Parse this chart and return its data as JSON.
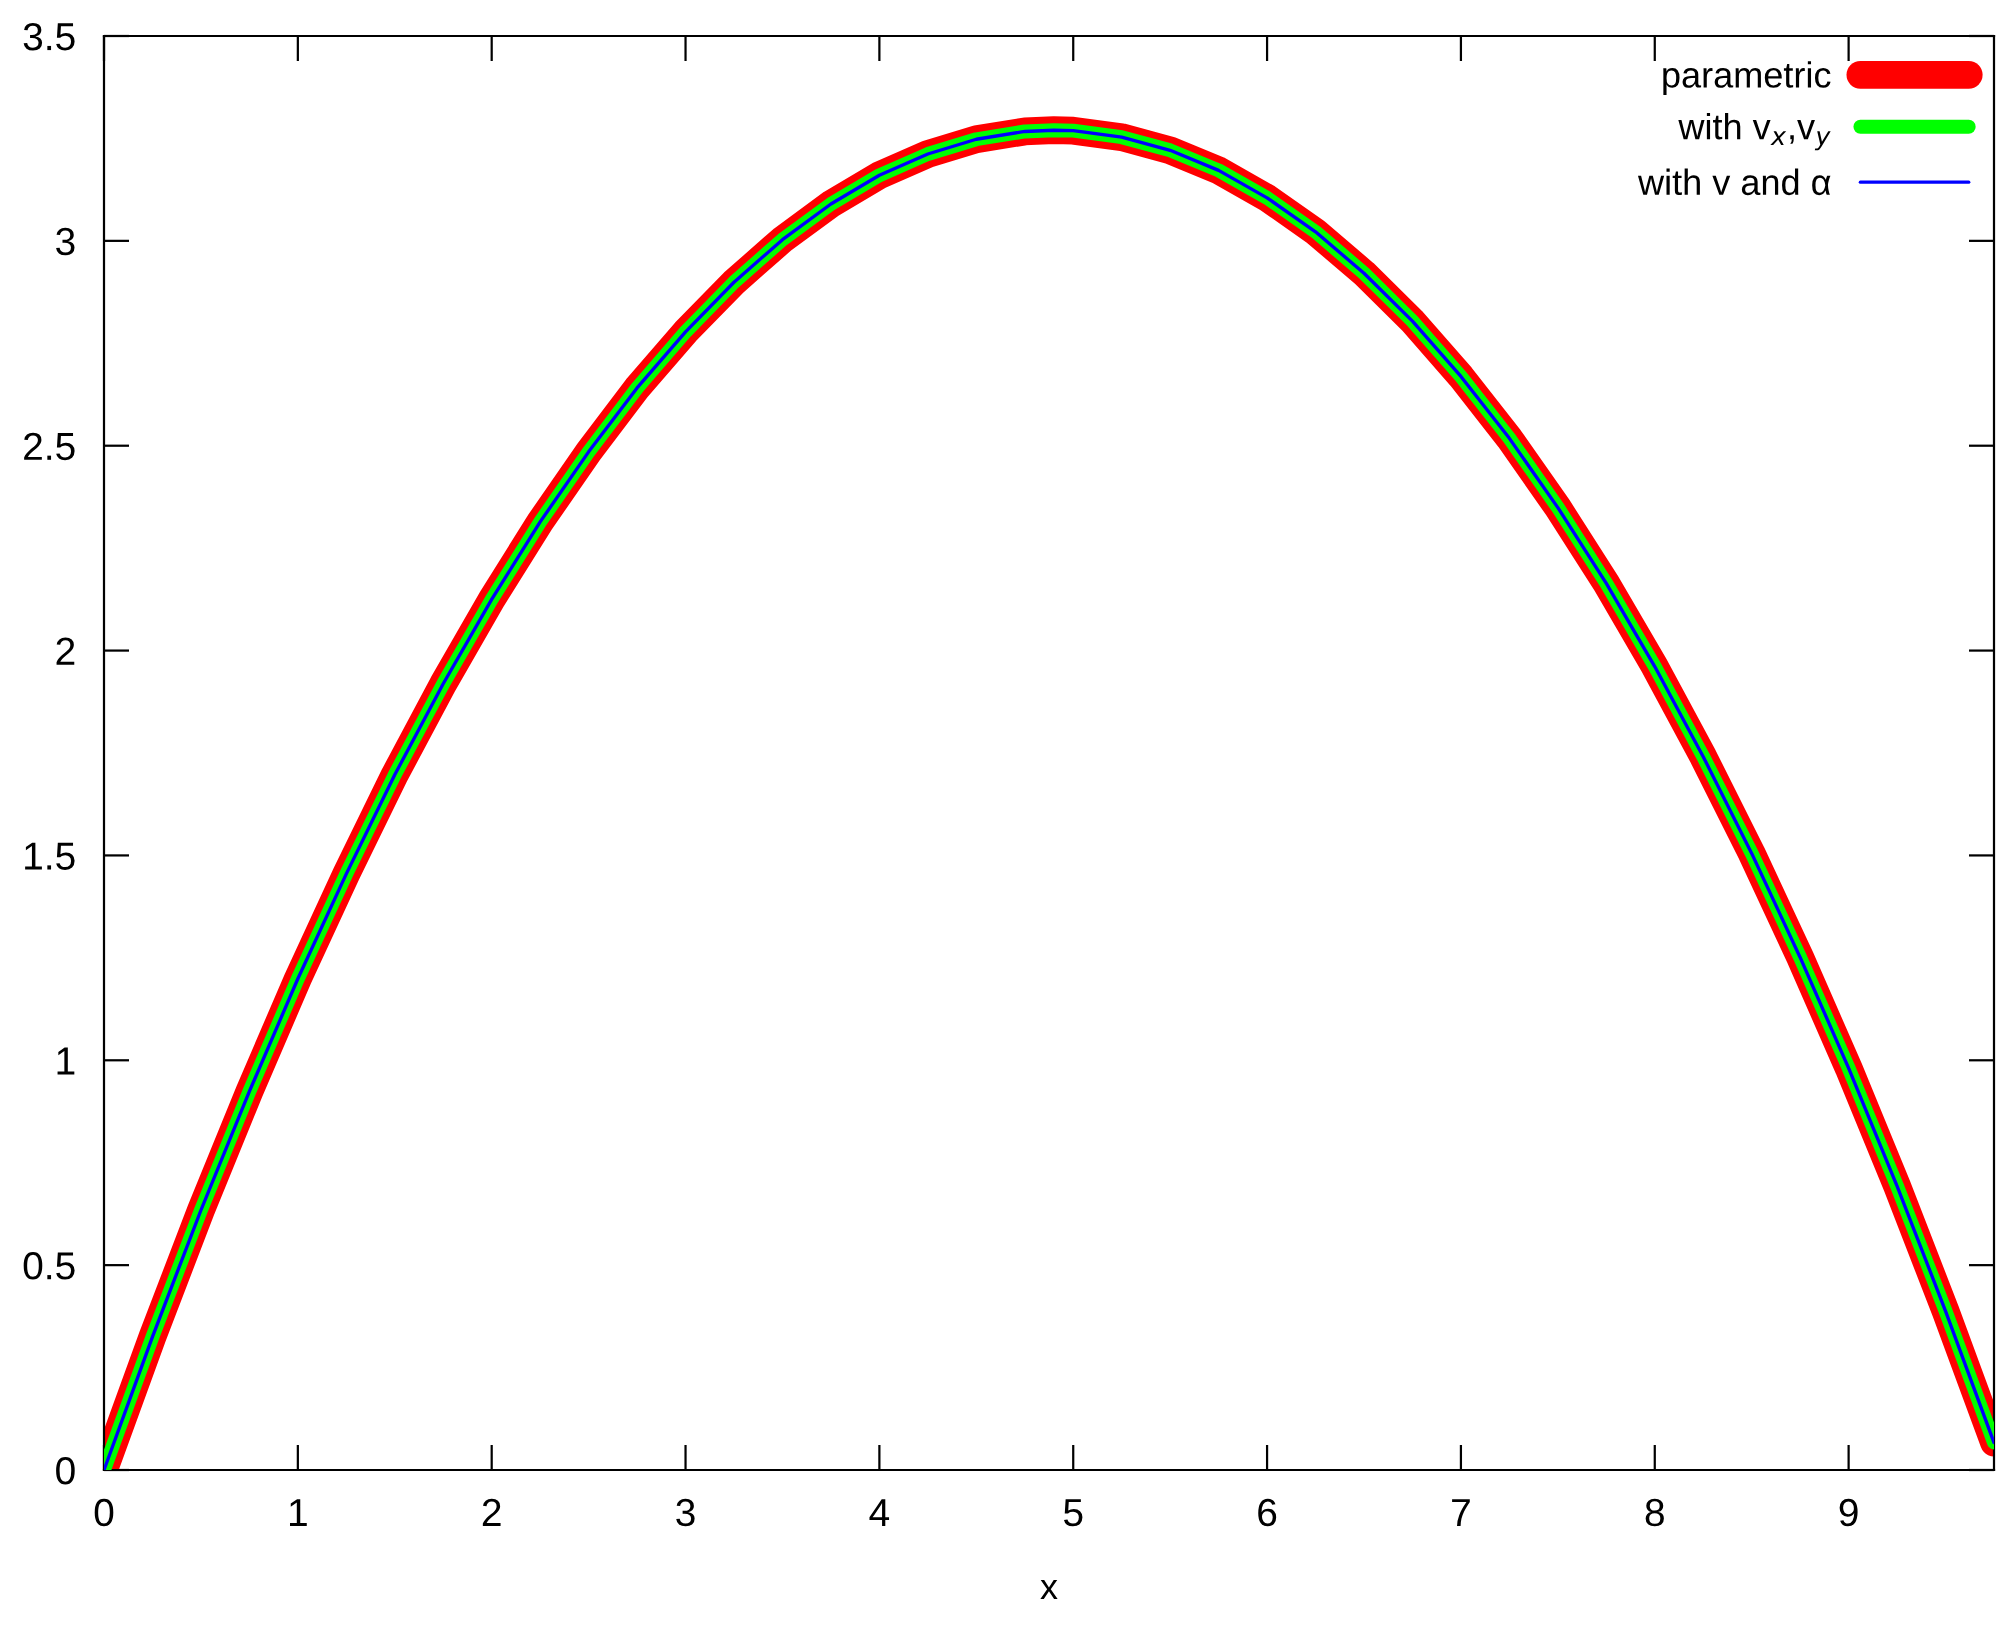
{
  "chart_data": {
    "type": "line",
    "xlabel": "x",
    "x": [
      0,
      0.25,
      0.5,
      0.75,
      1,
      1.25,
      1.5,
      1.75,
      2,
      2.25,
      2.5,
      2.75,
      3,
      3.25,
      3.5,
      3.75,
      4,
      4.25,
      4.5,
      4.75,
      4.9,
      5,
      5.25,
      5.5,
      5.75,
      6,
      6.25,
      6.5,
      6.75,
      7,
      7.25,
      7.5,
      7.75,
      8,
      8.25,
      8.5,
      8.75,
      9,
      9.25,
      9.5,
      9.75
    ],
    "series": [
      {
        "name": "parametric",
        "color": "#ff0000",
        "values": [
          0,
          0.325,
          0.634,
          0.924,
          1.199,
          1.455,
          1.697,
          1.919,
          2.125,
          2.314,
          2.485,
          2.641,
          2.778,
          2.899,
          3.003,
          3.09,
          3.16,
          3.212,
          3.248,
          3.267,
          3.27,
          3.269,
          3.253,
          3.221,
          3.172,
          3.105,
          3.022,
          2.921,
          2.804,
          2.669,
          2.518,
          2.349,
          2.164,
          1.961,
          1.741,
          1.505,
          1.251,
          0.981,
          0.693,
          0.388,
          0.067
        ]
      },
      {
        "name": "with v$_{x}$,v$_{y}$",
        "color": "#00ff00",
        "values": [
          0,
          0.325,
          0.634,
          0.924,
          1.199,
          1.455,
          1.697,
          1.919,
          2.125,
          2.314,
          2.485,
          2.641,
          2.778,
          2.899,
          3.003,
          3.09,
          3.16,
          3.212,
          3.248,
          3.267,
          3.27,
          3.269,
          3.253,
          3.221,
          3.172,
          3.105,
          3.022,
          2.921,
          2.804,
          2.669,
          2.518,
          2.349,
          2.164,
          1.961,
          1.741,
          1.505,
          1.251,
          0.981,
          0.693,
          0.388,
          0.067
        ]
      },
      {
        "name": "with v and α",
        "color": "#0000ff",
        "values": [
          0,
          0.325,
          0.634,
          0.924,
          1.199,
          1.455,
          1.697,
          1.919,
          2.125,
          2.314,
          2.485,
          2.641,
          2.778,
          2.899,
          3.003,
          3.09,
          3.16,
          3.212,
          3.248,
          3.267,
          3.27,
          3.269,
          3.253,
          3.221,
          3.172,
          3.105,
          3.022,
          2.921,
          2.804,
          2.669,
          2.518,
          2.349,
          2.164,
          1.961,
          1.741,
          1.505,
          1.251,
          0.981,
          0.693,
          0.388,
          0.067
        ]
      }
    ],
    "xlim": [
      0,
      9.75
    ],
    "ylim": [
      0,
      3.5
    ],
    "xticks": [
      0,
      1,
      2,
      3,
      4,
      5,
      6,
      7,
      8,
      9
    ],
    "yticks": [
      0,
      0.5,
      1,
      1.5,
      2,
      2.5,
      3,
      3.5
    ],
    "legend": "top right",
    "grid": false,
    "marker": "none",
    "line_style": "solid"
  }
}
